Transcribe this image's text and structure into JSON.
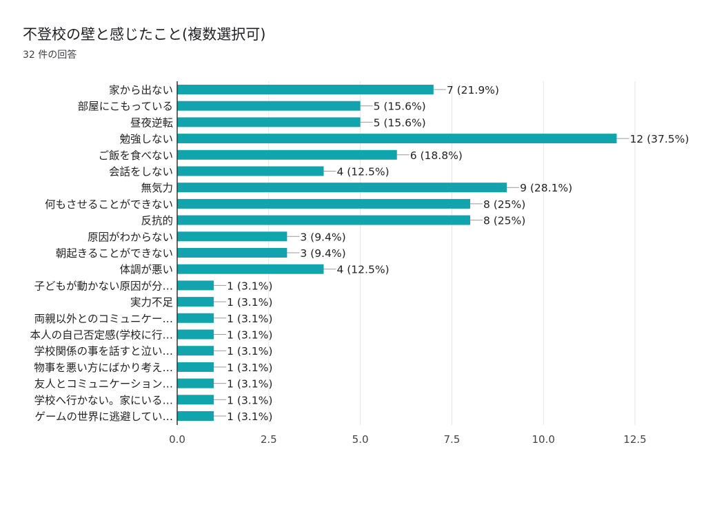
{
  "title": "不登校の壁と感じたこと(複数選択可)",
  "subtitle": "32 件の回答",
  "colors": {
    "bar": "#12a4ad",
    "grid": "#e6e6e6",
    "axis": "#333333",
    "text": "#222222"
  },
  "chart_data": {
    "type": "bar",
    "orientation": "horizontal",
    "categories": [
      "家から出ない",
      "部屋にこもっている",
      "昼夜逆転",
      "勉強しない",
      "ご飯を食べない",
      "会話をしない",
      "無気力",
      "何もさせることができない",
      "反抗的",
      "原因がわからない",
      "朝起きることができない",
      "体調が悪い",
      "子どもが動かない原因が分…",
      "実力不足",
      "両親以外とのコミュニケー…",
      "本人の自己否定感(学校に行…",
      "学校関係の事を話すと泣い…",
      "物事を悪い方にばかり考え…",
      "友人とコミュニケーション…",
      "学校へ行かない。家にいる…",
      "ゲームの世界に逃避してい…"
    ],
    "values": [
      7,
      5,
      5,
      12,
      6,
      4,
      9,
      8,
      8,
      3,
      3,
      4,
      1,
      1,
      1,
      1,
      1,
      1,
      1,
      1,
      1
    ],
    "data_labels": [
      "7 (21.9%)",
      "5 (15.6%)",
      "5 (15.6%)",
      "12 (37.5%)",
      "6 (18.8%)",
      "4 (12.5%)",
      "9 (28.1%)",
      "8 (25%)",
      "8 (25%)",
      "3 (9.4%)",
      "3 (9.4%)",
      "4 (12.5%)",
      "1 (3.1%)",
      "1 (3.1%)",
      "1 (3.1%)",
      "1 (3.1%)",
      "1 (3.1%)",
      "1 (3.1%)",
      "1 (3.1%)",
      "1 (3.1%)",
      "1 (3.1%)"
    ],
    "xlim": [
      0,
      12.5
    ],
    "xticks": [
      "0.0",
      "2.5",
      "5.0",
      "7.5",
      "10.0",
      "12.5"
    ],
    "xtick_values": [
      0,
      2.5,
      5,
      7.5,
      10,
      12.5
    ],
    "grid": true,
    "legend": "none"
  }
}
